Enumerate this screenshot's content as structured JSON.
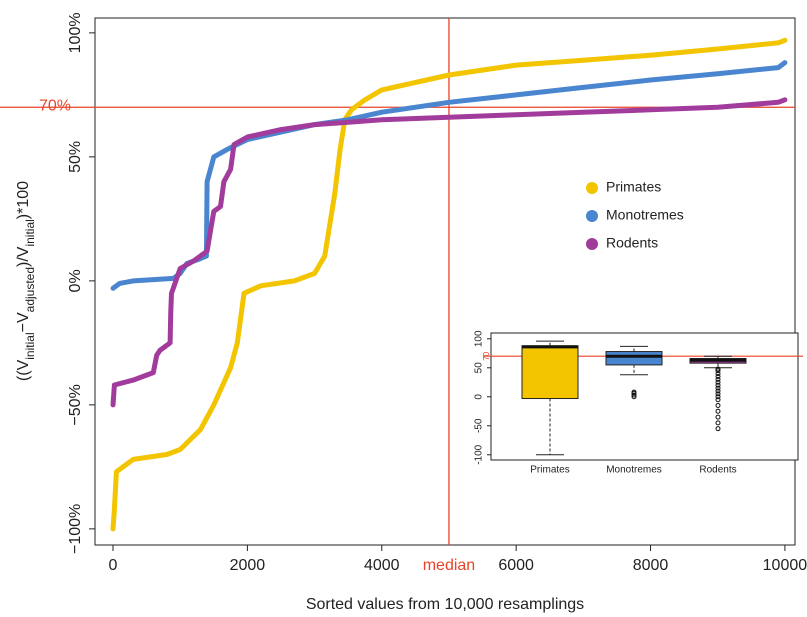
{
  "chart_data": [
    {
      "type": "line",
      "y_label": [
        "((V",
        "initial",
        "−V",
        "adjusted",
        ")/V",
        "initial",
        ")*100"
      ],
      "x_label": "Sorted values from 10,000 resamplings",
      "xlim": [
        -268,
        10150
      ],
      "xticks": [
        0,
        2000,
        4000,
        6000,
        8000,
        10000
      ],
      "ylim": [
        -106.5,
        106
      ],
      "yticks": [
        {
          "value": 100,
          "label": "100%"
        },
        {
          "value": 50,
          "label": "50%"
        },
        {
          "value": 0,
          "label": "0%"
        },
        {
          "value": -50,
          "label": "−50%"
        },
        {
          "value": -100,
          "label": "−100%"
        }
      ],
      "hline": {
        "value": 70,
        "label": "70%",
        "color": "#e8442a"
      },
      "vline": {
        "value": 5000,
        "label": "median",
        "color": "#e8442a"
      },
      "legend": "right",
      "series": [
        {
          "name": "Primates",
          "color": "#f2c500",
          "x": [
            0,
            20,
            50,
            300,
            800,
            1000,
            1300,
            1500,
            1750,
            1850,
            1950,
            2200,
            2700,
            3000,
            3150,
            3300,
            3380,
            3450,
            3550,
            3750,
            4000,
            5000,
            6000,
            7000,
            8000,
            9000,
            9900,
            10000
          ],
          "values": [
            -100,
            -92,
            -77,
            -72,
            -70,
            -68,
            -60,
            -50,
            -35,
            -25,
            -5,
            -2,
            0,
            3,
            10,
            35,
            53,
            65,
            69,
            73,
            77,
            83,
            87,
            89,
            91,
            93.5,
            96,
            97
          ]
        },
        {
          "name": "Monotremes",
          "color": "#4a86d0",
          "x": [
            0,
            100,
            300,
            900,
            1000,
            1100,
            1300,
            1390,
            1400,
            1500,
            1700,
            2000,
            2500,
            3000,
            3500,
            4000,
            5000,
            6000,
            7000,
            8000,
            9000,
            9900,
            10000
          ],
          "values": [
            -3,
            -1,
            0,
            1,
            3,
            7,
            9,
            10,
            40,
            50,
            53,
            57,
            60,
            63,
            65,
            68,
            72,
            75,
            78,
            81,
            83.5,
            86,
            88
          ]
        },
        {
          "name": "Rodents",
          "color": "#a23c9c",
          "x": [
            0,
            20,
            300,
            600,
            650,
            700,
            850,
            860,
            870,
            1000,
            1200,
            1400,
            1450,
            1500,
            1600,
            1650,
            1750,
            1800,
            2000,
            2500,
            3000,
            3500,
            4000,
            5000,
            6000,
            7000,
            8000,
            9000,
            9900,
            10000
          ],
          "values": [
            -50,
            -42,
            -40,
            -37,
            -30,
            -28,
            -25,
            -12,
            -5,
            5,
            8,
            12,
            20,
            28,
            30,
            40,
            45,
            55,
            58,
            61,
            63,
            64,
            65,
            66,
            67,
            68,
            69,
            70,
            72,
            73
          ]
        }
      ]
    },
    {
      "type": "box",
      "categories": [
        "Primates",
        "Monotremes",
        "Rodents"
      ],
      "ylim": [
        -109,
        110
      ],
      "yticks": [
        -100,
        -50,
        0,
        50,
        100
      ],
      "hline": {
        "value": 70,
        "color": "#e8442a"
      },
      "boxes": [
        {
          "color": "#f2c500",
          "low": -100,
          "q1": -3,
          "median": 86,
          "q3": 88,
          "high": 96,
          "outliers": []
        },
        {
          "color": "#4a86d0",
          "low": 38,
          "q1": 55,
          "median": 70,
          "q3": 78,
          "high": 87,
          "outliers": [
            0,
            3,
            6,
            8
          ]
        },
        {
          "color": "#a23c9c",
          "low": 50,
          "q1": 58,
          "median": 63,
          "q3": 66,
          "high": 70,
          "outliers": [
            -55,
            -45,
            -35,
            -25,
            -15,
            -5,
            0,
            5,
            10,
            15,
            20,
            25,
            30,
            35,
            40,
            45,
            48
          ]
        }
      ]
    }
  ]
}
